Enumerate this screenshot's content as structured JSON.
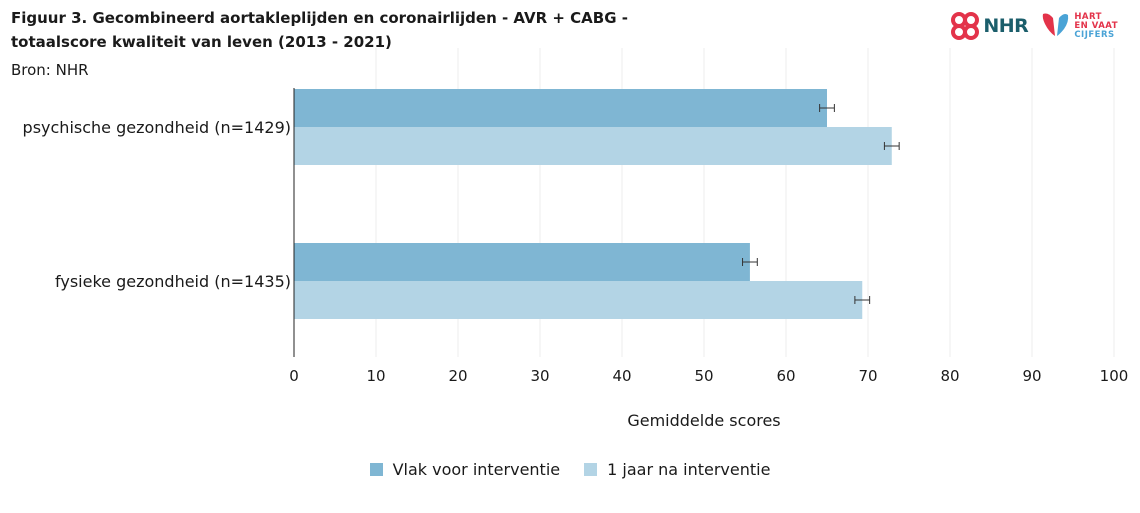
{
  "header": {
    "title": "Figuur 3. Gecombineerd aortakleplijden en coronairlijden - AVR + CABG - totaalscore kwaliteit van leven (2013 - 2021)",
    "source": "Bron: NHR"
  },
  "logos": {
    "nhr_text": "NHR",
    "hvc_line1": "HART",
    "hvc_line2": "EN VAAT",
    "hvc_line3": "CIJFERS",
    "nhr_color": "#e3334a",
    "hvc_color": "#e3334a"
  },
  "chart_data": {
    "type": "bar",
    "orientation": "horizontal",
    "categories": [
      "psychische gezondheid (n=1429)",
      "fysieke gezondheid (n=1435)"
    ],
    "series": [
      {
        "name": "Vlak voor interventie",
        "color": "#7fb6d3",
        "values": [
          65.0,
          55.6
        ],
        "error": [
          0.9,
          0.9
        ]
      },
      {
        "name": "1 jaar na interventie",
        "color": "#b3d4e5",
        "values": [
          72.9,
          69.3
        ],
        "error": [
          0.9,
          0.9
        ]
      }
    ],
    "xlabel": "Gemiddelde scores",
    "xlim": [
      0,
      100
    ],
    "xticks": [
      0,
      10,
      20,
      30,
      40,
      50,
      60,
      70,
      80,
      90,
      100
    ],
    "grid": "vertical",
    "legend_position": "bottom"
  }
}
